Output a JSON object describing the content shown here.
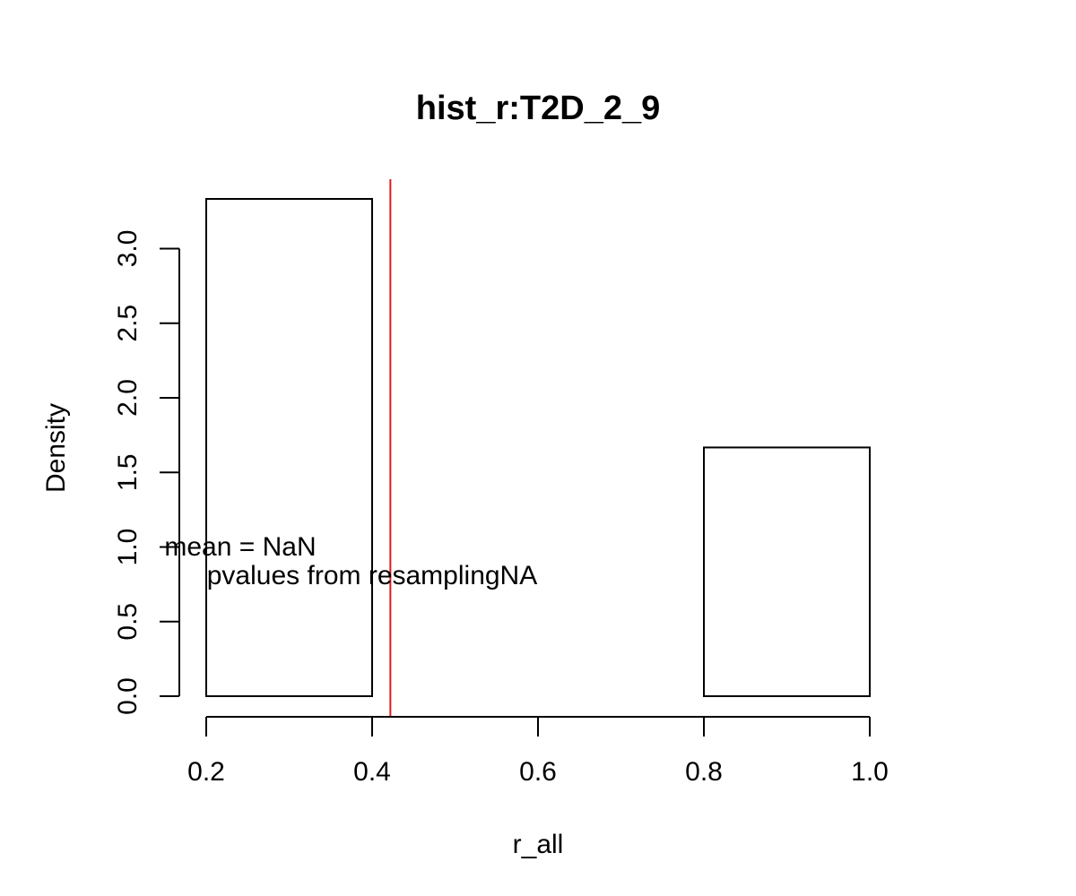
{
  "chart_data": {
    "type": "bar",
    "title": "hist_r:T2D_2_9",
    "xlabel": "r_all",
    "ylabel": "Density",
    "xlim": [
      0.2,
      1.0
    ],
    "ylim": [
      0,
      3.333
    ],
    "bins": [
      {
        "from": 0.2,
        "to": 0.4,
        "density": 3.333
      },
      {
        "from": 0.4,
        "to": 0.6,
        "density": 0
      },
      {
        "from": 0.6,
        "to": 0.8,
        "density": 0
      },
      {
        "from": 0.8,
        "to": 1.0,
        "density": 1.667
      }
    ],
    "x_ticks": [
      0.2,
      0.4,
      0.6,
      0.8,
      1.0
    ],
    "x_tick_labels": [
      "0.2",
      "0.4",
      "0.6",
      "0.8",
      "1.0"
    ],
    "y_ticks": [
      0.0,
      0.5,
      1.0,
      1.5,
      2.0,
      2.5,
      3.0
    ],
    "y_tick_labels": [
      "0.0",
      "0.5",
      "1.0",
      "1.5",
      "2.0",
      "2.5",
      "3.0"
    ],
    "vline": {
      "x": 0.422,
      "color": "#e31a1c"
    },
    "annotations": [
      {
        "text": "mean = NaN",
        "x": 0.2,
        "y": 1.0
      },
      {
        "text": "pvalues from resamplingNA",
        "x": 0.2,
        "y": 0.8
      }
    ],
    "grid": false,
    "legend": "none"
  }
}
